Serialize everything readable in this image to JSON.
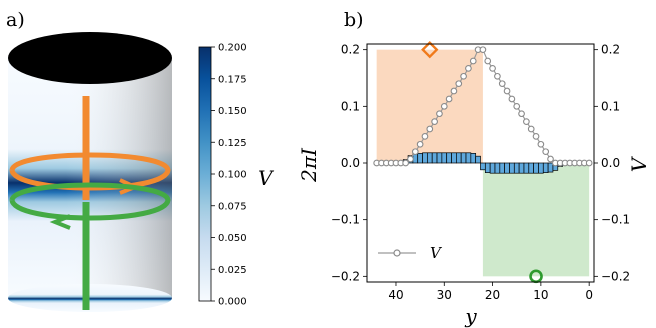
{
  "panels": {
    "a": {
      "label": "a)",
      "colorbar": {
        "label": "V",
        "ticks": [
          "0.000",
          "0.025",
          "0.050",
          "0.075",
          "0.100",
          "0.125",
          "0.150",
          "0.175",
          "0.200"
        ],
        "range": [
          0.0,
          0.2
        ],
        "colormap": "Blues",
        "low_color": "#f7fbff",
        "high_color": "#08306b"
      },
      "paths": {
        "orange_color": "#f28a30",
        "green_color": "#44aa44"
      },
      "cylinder": {
        "top_color": "#000000",
        "band_color": "#08306b"
      }
    },
    "b": {
      "label": "b)",
      "xlabel": "y",
      "ylabel_left": "2πI",
      "ylabel_right": "V",
      "legend_label": "V",
      "xticks": [
        "40",
        "30",
        "20",
        "10",
        "0"
      ],
      "yticks_left": [
        "0.2",
        "0.1",
        "0.0",
        "−0.1",
        "−0.2"
      ],
      "yticks_right": [
        "0.2",
        "0.1",
        "0.0",
        "−0.1",
        "−0.2"
      ]
    }
  },
  "chart_data": {
    "type": "line",
    "x_axis": {
      "reversed": true,
      "xlim": [
        46,
        -1
      ],
      "ticks": [
        40,
        30,
        20,
        10,
        0
      ]
    },
    "ylim": [
      -0.21,
      0.21
    ],
    "regions": [
      {
        "x_range": [
          44,
          22
        ],
        "y_range": [
          0.0,
          0.2
        ],
        "color": "#fbd9bf"
      },
      {
        "x_range": [
          22,
          0
        ],
        "y_range": [
          -0.2,
          0.0
        ],
        "color": "#cfe9cc"
      }
    ],
    "markers": [
      {
        "shape": "diamond",
        "x": 33,
        "y": 0.2,
        "color": "#f07a1a"
      },
      {
        "shape": "circle",
        "x": 11,
        "y": -0.2,
        "color": "#2e9a2e"
      }
    ],
    "series": [
      {
        "name": "V",
        "marker": "open-circle",
        "color": "#8a8a8a",
        "x": [
          44,
          43,
          42,
          41,
          40,
          39,
          38,
          37,
          36,
          35,
          34,
          33,
          32,
          31,
          30,
          29,
          28,
          27,
          26,
          25,
          24,
          23,
          22,
          21,
          20,
          19,
          18,
          17,
          16,
          15,
          14,
          13,
          12,
          11,
          10,
          9,
          8,
          7,
          6,
          5,
          4,
          3,
          2,
          1,
          0
        ],
        "y": [
          0,
          0,
          0,
          0,
          0,
          0,
          0,
          0.007,
          0.02,
          0.033,
          0.047,
          0.06,
          0.073,
          0.087,
          0.1,
          0.113,
          0.127,
          0.14,
          0.153,
          0.167,
          0.18,
          0.2,
          0.2,
          0.18,
          0.167,
          0.153,
          0.14,
          0.127,
          0.113,
          0.1,
          0.087,
          0.073,
          0.06,
          0.047,
          0.033,
          0.02,
          0.007,
          0,
          0,
          0,
          0,
          0,
          0,
          0,
          0
        ]
      },
      {
        "name": "2πI",
        "type": "bar",
        "color": "#5fa8dc",
        "x": [
          38,
          37,
          36,
          35,
          34,
          33,
          32,
          31,
          30,
          29,
          28,
          27,
          26,
          25,
          24,
          23,
          22,
          21,
          20,
          19,
          18,
          17,
          16,
          15,
          14,
          13,
          12,
          11,
          10,
          9,
          8,
          7,
          6
        ],
        "y": [
          0.006,
          0.013,
          0.016,
          0.017,
          0.018,
          0.018,
          0.018,
          0.018,
          0.018,
          0.018,
          0.018,
          0.018,
          0.018,
          0.018,
          0.017,
          0.012,
          -0.012,
          -0.017,
          -0.018,
          -0.018,
          -0.018,
          -0.018,
          -0.018,
          -0.018,
          -0.018,
          -0.018,
          -0.018,
          -0.018,
          -0.018,
          -0.017,
          -0.016,
          -0.013,
          -0.006
        ]
      }
    ]
  }
}
